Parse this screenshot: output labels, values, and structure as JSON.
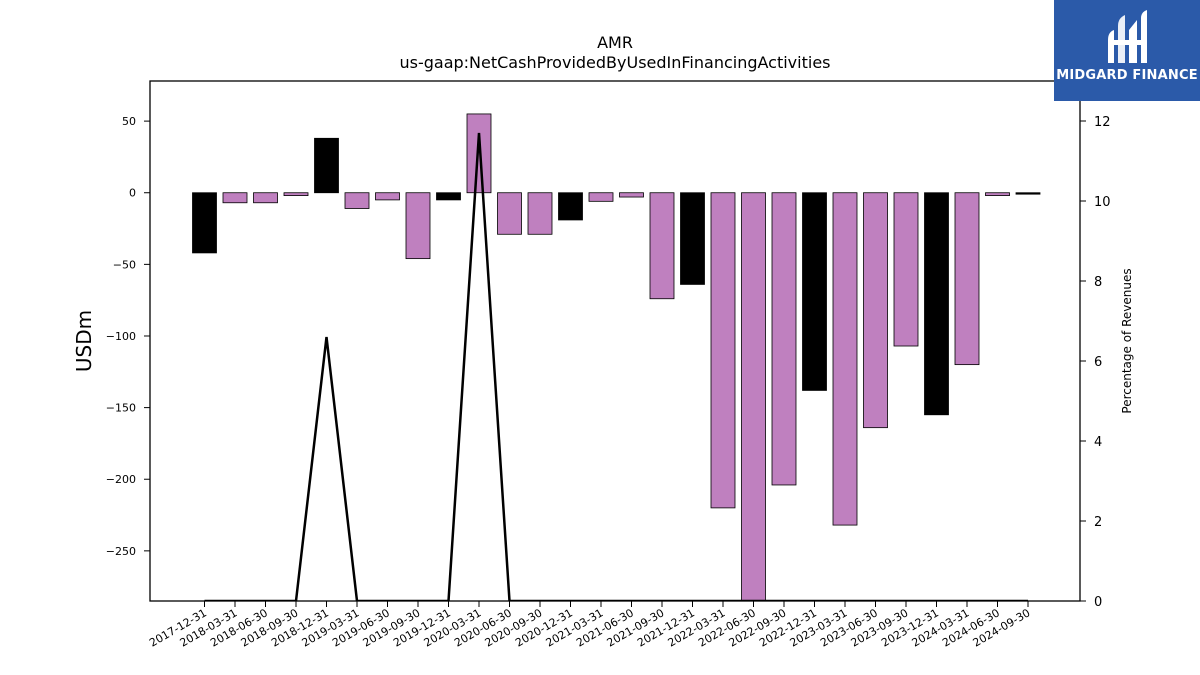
{
  "brand": {
    "name": "MIDGARD FINANCE",
    "bg": "#2b5aa9"
  },
  "chart_data": {
    "type": "bar",
    "title": "AMR",
    "subtitle": "us-gaap:NetCashProvidedByUsedInFinancingActivities",
    "ylabel": "USDm",
    "y2label": "Percentage of Revenues",
    "ylim": [
      -285,
      78
    ],
    "y2lim": [
      0,
      13.0
    ],
    "yticks": [
      50,
      0,
      -50,
      -100,
      -150,
      -200,
      -250
    ],
    "y2ticks": [
      0,
      2,
      4,
      6,
      8,
      10,
      12
    ],
    "colors": {
      "positive_qoq": "#bf80bf",
      "negative_qoq": "#000000",
      "line": "#000000"
    },
    "categories": [
      "2017-12-31",
      "2018-03-31",
      "2018-06-30",
      "2018-09-30",
      "2018-12-31",
      "2019-03-31",
      "2019-06-30",
      "2019-09-30",
      "2019-12-31",
      "2020-03-31",
      "2020-06-30",
      "2020-09-30",
      "2020-12-31",
      "2021-03-31",
      "2021-06-30",
      "2021-09-30",
      "2021-12-31",
      "2022-03-31",
      "2022-06-30",
      "2022-09-30",
      "2022-12-31",
      "2023-03-31",
      "2023-06-30",
      "2023-09-30",
      "2023-12-31",
      "2024-03-31",
      "2024-06-30",
      "2024-09-30"
    ],
    "series": [
      {
        "values": [
          -42,
          -7,
          -7,
          -2,
          38,
          -11,
          -5,
          -46,
          -5,
          55,
          -29,
          -29,
          -19,
          -6,
          -3,
          -74,
          -64,
          -220,
          -290,
          -204,
          -138,
          -232,
          -164,
          -107,
          -155,
          -120,
          -2,
          -1
        ],
        "bar_colors": [
          "#000000",
          "#bf80bf",
          "#bf80bf",
          "#bf80bf",
          "#000000",
          "#bf80bf",
          "#bf80bf",
          "#bf80bf",
          "#000000",
          "#bf80bf",
          "#bf80bf",
          "#bf80bf",
          "#000000",
          "#bf80bf",
          "#bf80bf",
          "#bf80bf",
          "#000000",
          "#bf80bf",
          "#bf80bf",
          "#bf80bf",
          "#000000",
          "#bf80bf",
          "#bf80bf",
          "#bf80bf",
          "#000000",
          "#bf80bf",
          "#bf80bf",
          "#000000"
        ]
      },
      {
        "type": "line",
        "axis": "y2",
        "values": [
          0,
          0,
          0,
          0,
          6.6,
          0,
          0,
          0,
          0,
          11.7,
          0,
          0,
          0,
          0,
          0,
          0,
          0,
          0,
          0,
          0,
          0,
          0,
          0,
          0,
          0,
          0,
          0,
          0
        ]
      }
    ]
  }
}
